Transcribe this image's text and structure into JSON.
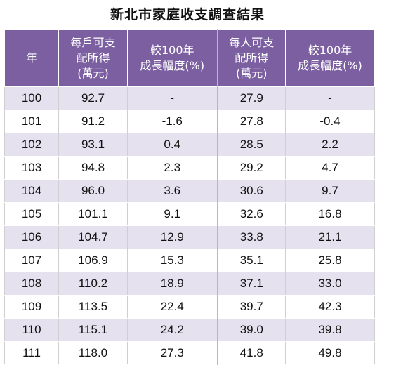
{
  "title": "新北市家庭收支調查結果",
  "headers": {
    "year": "年",
    "household_income": [
      "每戶可支",
      "配所得",
      "(萬元)"
    ],
    "household_growth": [
      "較100年",
      "成長幅度(%)"
    ],
    "per_capita_income": [
      "每人可支",
      "配所得",
      "(萬元)"
    ],
    "per_capita_growth": [
      "較100年",
      "成長幅度(%)"
    ]
  },
  "rows": [
    {
      "year": "100",
      "household_income": "92.7",
      "household_growth": "-",
      "per_capita_income": "27.9",
      "per_capita_growth": "-"
    },
    {
      "year": "101",
      "household_income": "91.2",
      "household_growth": "-1.6",
      "per_capita_income": "27.8",
      "per_capita_growth": "-0.4"
    },
    {
      "year": "102",
      "household_income": "93.1",
      "household_growth": "0.4",
      "per_capita_income": "28.5",
      "per_capita_growth": "2.2"
    },
    {
      "year": "103",
      "household_income": "94.8",
      "household_growth": "2.3",
      "per_capita_income": "29.2",
      "per_capita_growth": "4.7"
    },
    {
      "year": "104",
      "household_income": "96.0",
      "household_growth": "3.6",
      "per_capita_income": "30.6",
      "per_capita_growth": "9.7"
    },
    {
      "year": "105",
      "household_income": "101.1",
      "household_growth": "9.1",
      "per_capita_income": "32.6",
      "per_capita_growth": "16.8"
    },
    {
      "year": "106",
      "household_income": "104.7",
      "household_growth": "12.9",
      "per_capita_income": "33.8",
      "per_capita_growth": "21.1"
    },
    {
      "year": "107",
      "household_income": "106.9",
      "household_growth": "15.3",
      "per_capita_income": "35.1",
      "per_capita_growth": "25.8"
    },
    {
      "year": "108",
      "household_income": "110.2",
      "household_growth": "18.9",
      "per_capita_income": "37.1",
      "per_capita_growth": "33.0"
    },
    {
      "year": "109",
      "household_income": "113.5",
      "household_growth": "22.4",
      "per_capita_income": "39.7",
      "per_capita_growth": "42.3"
    },
    {
      "year": "110",
      "household_income": "115.1",
      "household_growth": "24.2",
      "per_capita_income": "39.0",
      "per_capita_growth": "39.8"
    },
    {
      "year": "111",
      "household_income": "118.0",
      "household_growth": "27.3",
      "per_capita_income": "41.8",
      "per_capita_growth": "49.8"
    }
  ],
  "colors": {
    "header_bg": "#7b5fa1",
    "header_text": "#ffffff",
    "stripe": "#e6e1ee"
  }
}
